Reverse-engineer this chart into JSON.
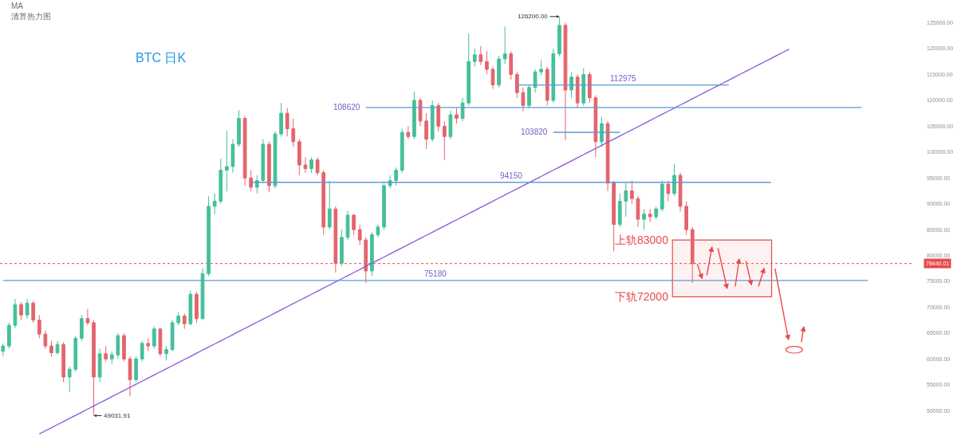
{
  "chart_data": {
    "type": "candlestick",
    "title": "BTC 日K",
    "annotations": [
      "MA",
      "清算热力图",
      "126200.00",
      "49031.91",
      "上轨83000",
      "下轨72000"
    ],
    "categories": [
      null,
      null,
      null,
      null,
      null,
      null,
      null,
      null,
      null,
      null,
      null,
      null,
      null,
      null,
      null,
      null,
      null,
      null,
      null,
      null,
      null,
      null,
      null,
      null,
      null,
      null,
      null,
      null,
      null,
      null,
      null,
      null,
      null,
      null,
      null,
      null,
      null,
      null,
      null,
      null,
      null,
      null,
      null,
      null,
      null,
      null,
      null,
      null,
      null,
      null,
      null,
      null,
      null,
      null,
      null,
      null,
      null,
      null,
      null,
      null,
      null,
      null,
      null,
      null,
      null,
      null,
      null,
      null,
      null,
      null,
      null,
      null,
      null,
      null,
      null,
      null,
      null,
      null,
      null,
      null,
      null,
      null,
      null,
      null,
      null,
      null,
      null,
      null,
      null,
      null,
      null,
      null,
      null,
      null,
      null,
      null,
      null,
      null,
      null,
      null,
      null,
      null,
      null,
      null,
      null,
      null,
      null,
      null,
      null,
      null,
      null,
      null,
      null,
      null,
      null,
      null,
      null,
      null,
      null,
      null,
      null,
      null,
      null,
      null,
      null,
      null,
      null,
      null,
      null,
      null,
      null,
      null,
      null,
      null,
      null,
      null,
      null,
      null,
      null,
      null,
      null,
      null,
      null,
      null,
      null,
      null,
      null,
      null,
      null,
      null,
      null
    ],
    "ohlc": [
      [
        61500,
        63000,
        60500,
        62500
      ],
      [
        62500,
        67000,
        62000,
        66500
      ],
      [
        66500,
        71600,
        66000,
        70500
      ],
      [
        70500,
        71000,
        67500,
        68500
      ],
      [
        68500,
        71600,
        67800,
        70800
      ],
      [
        70800,
        71200,
        67000,
        67500
      ],
      [
        67500,
        68500,
        64000,
        64800
      ],
      [
        64800,
        65500,
        62000,
        62500
      ],
      [
        62500,
        63500,
        60500,
        61200
      ],
      [
        61200,
        63500,
        60800,
        62800
      ],
      [
        62800,
        63200,
        55500,
        56500
      ],
      [
        56500,
        58500,
        53600,
        58000
      ],
      [
        58000,
        64500,
        57500,
        64000
      ],
      [
        64000,
        68500,
        63500,
        67800
      ],
      [
        67800,
        69700,
        66500,
        67000
      ],
      [
        67000,
        67500,
        49031.91,
        56500
      ],
      [
        56500,
        62000,
        55500,
        61000
      ],
      [
        61000,
        62500,
        59500,
        60000
      ],
      [
        60000,
        61500,
        59000,
        60800
      ],
      [
        60800,
        65000,
        60000,
        64500
      ],
      [
        64500,
        65000,
        59500,
        60000
      ],
      [
        60000,
        60500,
        52800,
        56000
      ],
      [
        56000,
        60500,
        55500,
        60000
      ],
      [
        60000,
        63500,
        59500,
        63000
      ],
      [
        63000,
        64000,
        61500,
        62500
      ],
      [
        62500,
        66300,
        62000,
        65800
      ],
      [
        65800,
        66000,
        60500,
        61000
      ],
      [
        61000,
        62500,
        59700,
        61800
      ],
      [
        61800,
        67500,
        61500,
        67000
      ],
      [
        67000,
        69000,
        66500,
        68300
      ],
      [
        68300,
        68800,
        65800,
        66800
      ],
      [
        66800,
        73200,
        66500,
        72500
      ],
      [
        72500,
        73000,
        67000,
        67800
      ],
      [
        67800,
        77500,
        67500,
        76500
      ],
      [
        76500,
        91500,
        76000,
        89500
      ],
      [
        89500,
        92000,
        88000,
        90500
      ],
      [
        90500,
        98700,
        90000,
        96500
      ],
      [
        96500,
        104100,
        92400,
        97200
      ],
      [
        97200,
        102500,
        96000,
        101500
      ],
      [
        101500,
        108100,
        101000,
        106500
      ],
      [
        106500,
        107000,
        93500,
        95000
      ],
      [
        95000,
        96500,
        92400,
        93200
      ],
      [
        93200,
        95500,
        92000,
        94500
      ],
      [
        94500,
        102500,
        94000,
        101500
      ],
      [
        101500,
        102000,
        92300,
        93500
      ],
      [
        93500,
        104000,
        93000,
        103500
      ],
      [
        103500,
        109500,
        103000,
        107500
      ],
      [
        107500,
        108500,
        103000,
        104500
      ],
      [
        104500,
        106500,
        101000,
        102000
      ],
      [
        102000,
        102500,
        95500,
        97500
      ],
      [
        97500,
        99000,
        96000,
        96800
      ],
      [
        96800,
        99000,
        96000,
        98500
      ],
      [
        98500,
        99000,
        95500,
        96000
      ],
      [
        96000,
        96500,
        84000,
        85500
      ],
      [
        85500,
        94400,
        85000,
        89000
      ],
      [
        89000,
        89500,
        76700,
        78500
      ],
      [
        78500,
        85000,
        78000,
        83500
      ],
      [
        83500,
        88700,
        83000,
        87800
      ],
      [
        87800,
        88000,
        84000,
        85000
      ],
      [
        85000,
        86000,
        82000,
        83000
      ],
      [
        83000,
        83500,
        74700,
        77000
      ],
      [
        77000,
        84500,
        76000,
        84000
      ],
      [
        84000,
        86000,
        83500,
        85500
      ],
      [
        85500,
        94000,
        85000,
        93500
      ],
      [
        93500,
        95500,
        93000,
        94500
      ],
      [
        94500,
        97000,
        93500,
        96500
      ],
      [
        96500,
        104500,
        96000,
        103800
      ],
      [
        103800,
        105000,
        102500,
        103000
      ],
      [
        103000,
        111700,
        102500,
        110000
      ],
      [
        110000,
        110500,
        105000,
        106000
      ],
      [
        106000,
        107500,
        100600,
        102500
      ],
      [
        102500,
        110000,
        102000,
        109000
      ],
      [
        109000,
        109500,
        104000,
        105000
      ],
      [
        105000,
        106000,
        98500,
        103000
      ],
      [
        103000,
        108000,
        102500,
        107200
      ],
      [
        107200,
        108500,
        105500,
        106500
      ],
      [
        106500,
        110500,
        106000,
        109500
      ],
      [
        109500,
        122900,
        109000,
        117500
      ],
      [
        117500,
        120000,
        116500,
        118800
      ],
      [
        118800,
        120500,
        116800,
        117500
      ],
      [
        117500,
        119500,
        115000,
        116000
      ],
      [
        116000,
        116500,
        112200,
        113000
      ],
      [
        113000,
        118600,
        112500,
        118000
      ],
      [
        118000,
        124300,
        117000,
        119000
      ],
      [
        119000,
        119500,
        114000,
        115000
      ],
      [
        115000,
        115500,
        110500,
        111500
      ],
      [
        111500,
        112500,
        107900,
        109000
      ],
      [
        109000,
        113000,
        108500,
        112500
      ],
      [
        112500,
        116000,
        111500,
        115500
      ],
      [
        115500,
        117800,
        114800,
        116000
      ],
      [
        116000,
        116500,
        109000,
        110000
      ],
      [
        110000,
        120000,
        109500,
        119000
      ],
      [
        119000,
        126200,
        118500,
        124500
      ],
      [
        124500,
        125000,
        102300,
        112000
      ],
      [
        112000,
        115400,
        110500,
        114500
      ],
      [
        114500,
        115000,
        108500,
        109500
      ],
      [
        109500,
        116200,
        109000,
        115000
      ],
      [
        115000,
        115500,
        109500,
        110500
      ],
      [
        110500,
        111000,
        99000,
        102000
      ],
      [
        102000,
        106800,
        101000,
        105500
      ],
      [
        105500,
        106000,
        92500,
        94000
      ],
      [
        94000,
        94500,
        80800,
        86000
      ],
      [
        86000,
        92000,
        85500,
        90500
      ],
      [
        90500,
        94000,
        87500,
        92500
      ],
      [
        92500,
        94500,
        90000,
        91000
      ],
      [
        91000,
        91500,
        85500,
        87000
      ],
      [
        87000,
        89000,
        85000,
        88000
      ],
      [
        88000,
        89000,
        86500,
        87500
      ],
      [
        87500,
        89500,
        87000,
        89000
      ],
      [
        89000,
        94500,
        88500,
        93800
      ],
      [
        93800,
        94500,
        90500,
        92000
      ],
      [
        92000,
        97700,
        91500,
        95500
      ],
      [
        95500,
        96000,
        88500,
        89500
      ],
      [
        89500,
        90500,
        84000,
        85000
      ],
      [
        85000,
        85500,
        74700,
        78440.01
      ],
      null,
      null,
      null,
      null,
      null,
      null,
      null,
      null,
      null,
      null,
      null,
      null,
      null,
      null,
      null,
      null,
      null,
      null,
      null,
      null,
      null,
      null,
      null,
      null,
      null,
      null,
      null,
      null,
      null,
      null,
      null,
      null,
      null,
      null,
      null,
      null
    ],
    "colors": [
      "#45bf9a",
      "#45bf9a",
      "#45bf9a",
      "#e5646c",
      "#45bf9a",
      "#e5646c",
      "#e5646c",
      "#e5646c",
      "#e5646c",
      "#45bf9a",
      "#e5646c",
      "#45bf9a",
      "#45bf9a",
      "#45bf9a",
      "#e5646c",
      "#e5646c",
      "#45bf9a",
      "#e5646c",
      "#45bf9a",
      "#45bf9a",
      "#e5646c",
      "#e5646c",
      "#45bf9a",
      "#45bf9a",
      "#e5646c",
      "#45bf9a",
      "#e5646c",
      "#45bf9a",
      "#45bf9a",
      "#45bf9a",
      "#e5646c",
      "#45bf9a",
      "#e5646c",
      "#45bf9a",
      "#45bf9a",
      "#45bf9a",
      "#45bf9a",
      "#45bf9a",
      "#45bf9a",
      "#45bf9a",
      "#e5646c",
      "#e5646c",
      "#45bf9a",
      "#45bf9a",
      "#e5646c",
      "#45bf9a",
      "#45bf9a",
      "#e5646c",
      "#e5646c",
      "#e5646c",
      "#e5646c",
      "#45bf9a",
      "#e5646c",
      "#e5646c",
      "#45bf9a",
      "#e5646c",
      "#45bf9a",
      "#45bf9a",
      "#e5646c",
      "#e5646c",
      "#e5646c",
      "#45bf9a",
      "#45bf9a",
      "#45bf9a",
      "#45bf9a",
      "#45bf9a",
      "#45bf9a",
      "#e5646c",
      "#45bf9a",
      "#e5646c",
      "#e5646c",
      "#45bf9a",
      "#e5646c",
      "#e5646c",
      "#45bf9a",
      "#e5646c",
      "#45bf9a",
      "#45bf9a",
      "#45bf9a",
      "#e5646c",
      "#e5646c",
      "#e5646c",
      "#45bf9a",
      "#45bf9a",
      "#e5646c",
      "#e5646c",
      "#e5646c",
      "#45bf9a",
      "#45bf9a",
      "#45bf9a",
      "#e5646c",
      "#45bf9a",
      "#45bf9a",
      "#e5646c",
      "#45bf9a",
      "#e5646c",
      "#45bf9a",
      "#e5646c",
      "#e5646c",
      "#45bf9a",
      "#e5646c",
      "#e5646c",
      "#45bf9a",
      "#45bf9a",
      "#e5646c",
      "#e5646c",
      "#45bf9a",
      "#e5646c",
      "#45bf9a",
      "#45bf9a",
      "#e5646c",
      "#45bf9a",
      "#e5646c",
      "#e5646c",
      "#e5646c",
      null,
      null,
      null,
      null,
      null,
      null,
      null,
      null,
      null,
      null,
      null,
      null,
      null,
      null,
      null,
      null,
      null,
      null,
      null,
      null,
      null,
      null,
      null,
      null,
      null,
      null,
      null,
      null,
      null,
      null,
      null,
      null,
      null,
      null,
      null,
      null
    ],
    "series": [
      {
        "type": "line",
        "color": "#8b55d9",
        "values": [
          null,
          null,
          null,
          null,
          null,
          null,
          45500,
          46100,
          46700,
          47300,
          47900,
          48500,
          49100,
          49700,
          50300,
          50900,
          51500,
          52100,
          52700,
          53300,
          53900,
          54500,
          55100,
          55700,
          56300,
          56900,
          57500,
          58100,
          58700,
          59300,
          59900,
          60500,
          61100,
          61700,
          62300,
          62900,
          63500,
          64100,
          64700,
          65300,
          65900,
          66500,
          67100,
          67700,
          68300,
          68900,
          69500,
          70100,
          70700,
          71300,
          71900,
          72500,
          73100,
          73700,
          74300,
          74900,
          75500,
          76100,
          76700,
          77300,
          77900,
          78500,
          79100,
          79700,
          80300,
          80900,
          81500,
          82100,
          82700,
          83300,
          83900,
          84500,
          85100,
          85700,
          86300,
          86900,
          87500,
          88100,
          88700,
          89300,
          89900,
          90500,
          91100,
          91700,
          92300,
          92900,
          93500,
          94100,
          94700,
          95300,
          95900,
          96500,
          97100,
          97700,
          98300,
          98900,
          99500,
          100100,
          100700,
          101300,
          101900,
          102500,
          103100,
          103700,
          104300,
          104900,
          105500,
          106100,
          106700,
          107300,
          107900,
          108500,
          109100,
          109700,
          110300,
          110900,
          111500,
          112100,
          112700,
          113300,
          113900,
          114500,
          115100,
          115700,
          116300,
          116900,
          117500,
          118100,
          118700,
          119300,
          119900,
          null,
          null,
          null,
          null,
          null,
          null,
          null,
          null,
          null,
          null,
          null,
          null,
          null,
          null,
          null,
          null,
          null,
          null,
          null,
          null
        ]
      },
      {
        "type": "line",
        "name": "112975",
        "color": "#5b9bd5",
        "values": [
          null,
          null,
          null,
          null,
          null,
          null,
          null,
          null,
          null,
          null,
          null,
          null,
          null,
          null,
          null,
          null,
          null,
          null,
          null,
          null,
          null,
          null,
          null,
          null,
          null,
          null,
          null,
          null,
          null,
          null,
          null,
          null,
          null,
          null,
          null,
          null,
          null,
          null,
          null,
          null,
          null,
          null,
          null,
          null,
          null,
          null,
          null,
          null,
          null,
          null,
          null,
          null,
          null,
          null,
          null,
          null,
          null,
          null,
          null,
          null,
          null,
          null,
          null,
          null,
          null,
          null,
          null,
          null,
          null,
          null,
          null,
          null,
          null,
          null,
          null,
          null,
          null,
          null,
          null,
          null,
          null,
          null,
          null,
          null,
          null,
          112975,
          112975,
          112975,
          112975,
          112975,
          112975,
          112975,
          112975,
          112975,
          112975,
          112975,
          112975,
          112975,
          112975,
          112975,
          112975,
          112975,
          112975,
          112975,
          112975,
          112975,
          112975,
          112975,
          112975,
          112975,
          112975,
          112975,
          112975,
          112975,
          112975,
          112975,
          112975,
          112975,
          112975,
          112975,
          112975,
          null,
          null,
          null,
          null,
          null,
          null,
          null,
          null,
          null,
          null,
          null,
          null,
          null,
          null,
          null,
          null,
          null,
          null,
          null,
          null,
          null,
          null,
          null,
          null,
          null,
          null,
          null,
          null,
          null,
          null
        ]
      },
      {
        "type": "line",
        "name": "108620",
        "color": "#5b9bd5",
        "values": [
          null,
          null,
          null,
          null,
          null,
          null,
          null,
          null,
          null,
          null,
          null,
          null,
          null,
          null,
          null,
          null,
          null,
          null,
          null,
          null,
          null,
          null,
          null,
          null,
          null,
          null,
          null,
          null,
          null,
          null,
          null,
          null,
          null,
          null,
          null,
          null,
          null,
          null,
          null,
          null,
          null,
          null,
          null,
          null,
          null,
          null,
          null,
          null,
          null,
          null,
          null,
          null,
          null,
          null,
          null,
          null,
          null,
          null,
          null,
          null,
          108620,
          108620,
          108620,
          108620,
          108620,
          108620,
          108620,
          108620,
          108620,
          108620,
          108620,
          108620,
          108620,
          108620,
          108620,
          108620,
          108620,
          108620,
          108620,
          108620,
          108620,
          108620,
          108620,
          108620,
          108620,
          108620,
          108620,
          108620,
          108620,
          108620,
          108620,
          108620,
          108620,
          108620,
          108620,
          108620,
          108620,
          108620,
          108620,
          108620,
          108620,
          108620,
          108620,
          108620,
          108620,
          108620,
          108620,
          108620,
          108620,
          108620,
          108620,
          108620,
          108620,
          108620,
          108620,
          108620,
          108620,
          108620,
          108620,
          108620,
          108620,
          108620,
          108620,
          108620,
          108620,
          108620,
          108620,
          108620,
          108620,
          108620,
          108620,
          108620,
          108620,
          108620,
          108620,
          108620,
          108620,
          108620,
          108620,
          108620,
          108620,
          108620,
          108620,
          null,
          null,
          null,
          null,
          null,
          null,
          null,
          null
        ]
      },
      {
        "type": "line",
        "name": "103820",
        "color": "#5b9bd5",
        "values": [
          null,
          null,
          null,
          null,
          null,
          null,
          null,
          null,
          null,
          null,
          null,
          null,
          null,
          null,
          null,
          null,
          null,
          null,
          null,
          null,
          null,
          null,
          null,
          null,
          null,
          null,
          null,
          null,
          null,
          null,
          null,
          null,
          null,
          null,
          null,
          null,
          null,
          null,
          null,
          null,
          null,
          null,
          null,
          null,
          null,
          null,
          null,
          null,
          null,
          null,
          null,
          null,
          null,
          null,
          null,
          null,
          null,
          null,
          null,
          null,
          null,
          null,
          null,
          null,
          null,
          null,
          null,
          null,
          null,
          null,
          null,
          null,
          null,
          null,
          null,
          null,
          null,
          null,
          null,
          null,
          null,
          null,
          null,
          null,
          null,
          null,
          null,
          null,
          null,
          null,
          null,
          103820,
          103820,
          103820,
          103820,
          103820,
          103820,
          103820,
          103820,
          103820,
          103820,
          103820,
          103820,
          null,
          null,
          null,
          null,
          null,
          null,
          null,
          null,
          null,
          null,
          null,
          null,
          null,
          null,
          null,
          null,
          null,
          null,
          null,
          null,
          null,
          null,
          null,
          null,
          null,
          null,
          null,
          null,
          null,
          null,
          null,
          null,
          null,
          null,
          null,
          null,
          null,
          null,
          null,
          null,
          null,
          null,
          null,
          null,
          null,
          null,
          null,
          null
        ]
      },
      {
        "type": "line",
        "name": "94150",
        "color": "#5b9bd5",
        "values": [
          null,
          null,
          null,
          null,
          null,
          null,
          null,
          null,
          null,
          null,
          null,
          null,
          null,
          null,
          null,
          null,
          null,
          null,
          null,
          null,
          null,
          null,
          null,
          null,
          null,
          null,
          null,
          null,
          null,
          null,
          null,
          null,
          null,
          null,
          null,
          null,
          null,
          null,
          null,
          null,
          null,
          94150,
          94150,
          94150,
          94150,
          94150,
          94150,
          94150,
          94150,
          94150,
          94150,
          94150,
          94150,
          94150,
          94150,
          94150,
          94150,
          94150,
          94150,
          94150,
          94150,
          94150,
          94150,
          94150,
          94150,
          94150,
          94150,
          94150,
          94150,
          94150,
          94150,
          94150,
          94150,
          94150,
          94150,
          94150,
          94150,
          94150,
          94150,
          94150,
          94150,
          94150,
          94150,
          94150,
          94150,
          94150,
          94150,
          94150,
          94150,
          94150,
          94150,
          94150,
          94150,
          94150,
          94150,
          94150,
          94150,
          94150,
          94150,
          94150,
          94150,
          94150,
          94150,
          94150,
          94150,
          94150,
          94150,
          94150,
          94150,
          94150,
          94150,
          94150,
          94150,
          94150,
          94150,
          94150,
          94150,
          94150,
          94150,
          94150,
          94150,
          94150,
          94150,
          94150,
          94150,
          94150,
          94150,
          94150,
          null,
          null,
          null,
          null,
          null,
          null,
          null,
          null,
          null,
          null,
          null,
          null,
          null,
          null,
          null,
          null,
          null,
          null,
          null,
          null,
          null,
          null,
          null
        ]
      },
      {
        "type": "line",
        "name": "75180",
        "color": "#5b9bd5",
        "values": [
          75180,
          75180,
          75180,
          75180,
          75180,
          75180,
          75180,
          75180,
          75180,
          75180,
          75180,
          75180,
          75180,
          75180,
          75180,
          75180,
          75180,
          75180,
          75180,
          75180,
          75180,
          75180,
          75180,
          75180,
          75180,
          75180,
          75180,
          75180,
          75180,
          75180,
          75180,
          75180,
          75180,
          75180,
          75180,
          75180,
          75180,
          75180,
          75180,
          75180,
          75180,
          75180,
          75180,
          75180,
          75180,
          75180,
          75180,
          75180,
          75180,
          75180,
          75180,
          75180,
          75180,
          75180,
          75180,
          75180,
          75180,
          75180,
          75180,
          75180,
          75180,
          75180,
          75180,
          75180,
          75180,
          75180,
          75180,
          75180,
          75180,
          75180,
          75180,
          75180,
          75180,
          75180,
          75180,
          75180,
          75180,
          75180,
          75180,
          75180,
          75180,
          75180,
          75180,
          75180,
          75180,
          75180,
          75180,
          75180,
          75180,
          75180,
          75180,
          75180,
          75180,
          75180,
          75180,
          75180,
          75180,
          75180,
          75180,
          75180,
          75180,
          75180,
          75180,
          75180,
          75180,
          75180,
          75180,
          75180,
          75180,
          75180,
          75180,
          75180,
          75180,
          75180,
          75180,
          75180,
          75180,
          75180,
          75180,
          75180,
          75180,
          75180,
          75180,
          75180,
          75180,
          75180,
          75180,
          75180,
          75180,
          75180,
          75180,
          75180,
          75180,
          75180,
          75180,
          75180,
          75180,
          75180,
          75180,
          75180,
          75180,
          75180,
          75180,
          75180,
          null,
          null,
          null,
          null,
          null,
          null,
          null
        ]
      }
    ],
    "ylim": [
      45100,
      129400
    ],
    "yticks": [
      {
        "value": 50000,
        "label": "50000.00"
      },
      {
        "value": 55000,
        "label": "55000.00"
      },
      {
        "value": 60000,
        "label": "60000.00"
      },
      {
        "value": 65000,
        "label": "65000.00"
      },
      {
        "value": 70000,
        "label": "70000.00"
      },
      {
        "value": 75000,
        "label": "75000.00"
      },
      {
        "value": 80000,
        "label": "80000.00"
      },
      {
        "value": 85000,
        "label": "85000.00"
      },
      {
        "value": 90000,
        "label": "90000.00"
      },
      {
        "value": 95000,
        "label": "95000.00"
      },
      {
        "value": 100000,
        "label": "100000.00"
      },
      {
        "value": 105000,
        "label": "105000.00"
      },
      {
        "value": 110000,
        "label": "110000.00"
      },
      {
        "value": 115000,
        "label": "115000.00"
      },
      {
        "value": 120000,
        "label": "120000.00"
      },
      {
        "value": 125000,
        "label": "125000.00"
      }
    ],
    "ref_lines": [
      {
        "axis": "y",
        "value": 78440.01,
        "label": "78440.01",
        "color": "#e84a4a",
        "line_style": "dotted"
      }
    ],
    "bands": [
      {
        "axis": "y",
        "from": 72000,
        "to": 83000,
        "color": "#e84a4a"
      }
    ],
    "tick_labels": "y"
  }
}
